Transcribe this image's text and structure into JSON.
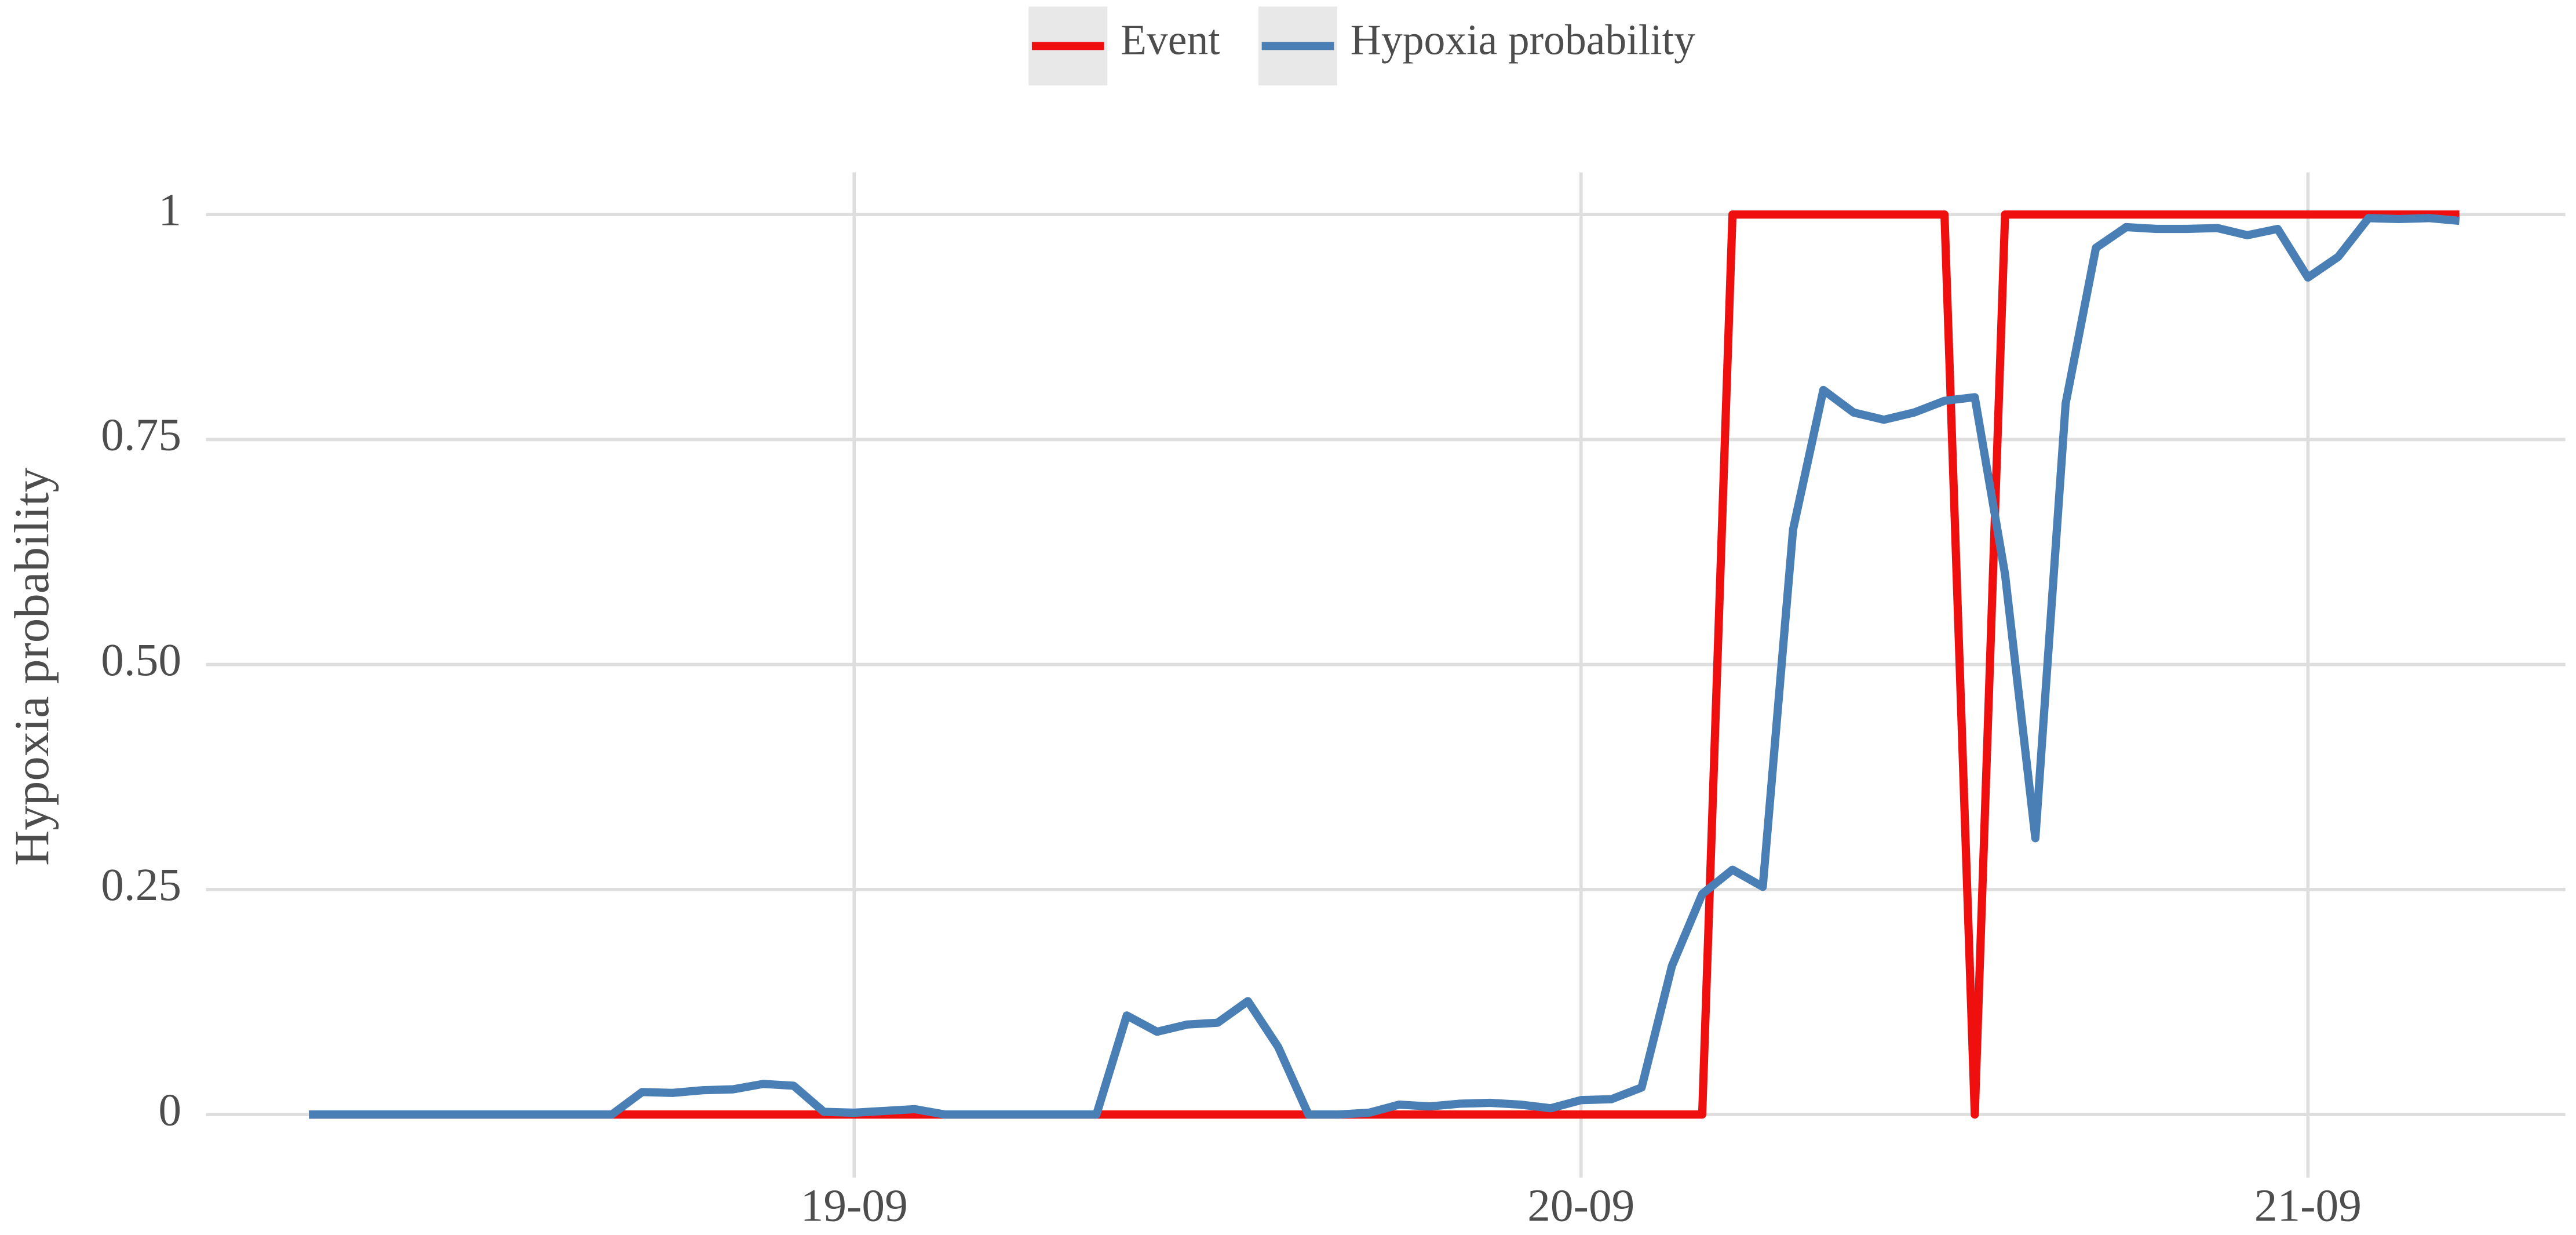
{
  "chart_data": {
    "type": "line",
    "y_label": "Hypoxia probability",
    "legend": "top",
    "grid": true,
    "x": [
      6,
      7,
      8,
      9,
      10,
      11,
      12,
      13,
      14,
      15,
      16,
      17,
      18,
      19,
      20,
      21,
      22,
      23,
      24,
      25,
      26,
      27,
      28,
      29,
      30,
      31,
      32,
      33,
      34,
      35,
      36,
      37,
      38,
      39,
      40,
      41,
      42,
      43,
      44,
      45,
      46,
      47,
      48,
      49,
      50,
      51,
      52,
      53,
      54,
      55,
      56,
      57,
      58,
      59,
      60,
      61,
      62,
      63,
      64,
      65,
      66,
      67,
      68,
      69,
      70,
      71,
      72,
      73,
      74,
      75,
      76,
      77
    ],
    "xlim": [
      2.6,
      80.5
    ],
    "xticks": [
      {
        "value": 24,
        "label": "19-09"
      },
      {
        "value": 48,
        "label": "20-09"
      },
      {
        "value": 72,
        "label": "21-09"
      }
    ],
    "ylim": [
      -0.07,
      1.065
    ],
    "yticks": [
      0,
      0.25,
      {
        "value": 0.5,
        "label": "0.50"
      },
      0.75,
      1
    ],
    "series": [
      {
        "name": "Event",
        "color": "#f00f0f",
        "values": [
          0,
          0,
          0,
          0,
          0,
          0,
          0,
          0,
          0,
          0,
          0,
          0,
          0,
          0,
          0,
          0,
          0,
          0,
          0,
          0,
          0,
          0,
          0,
          0,
          0,
          0,
          0,
          0,
          0,
          0,
          0,
          0,
          0,
          0,
          0,
          0,
          0,
          0,
          0,
          0,
          0,
          0,
          0,
          0,
          0,
          0,
          0,
          1,
          1,
          1,
          1,
          1,
          1,
          1,
          1,
          0,
          1,
          1,
          1,
          1,
          1,
          1,
          1,
          1,
          1,
          1,
          1,
          1,
          1,
          1,
          1,
          1
        ]
      },
      {
        "name": "Hypoxia probability",
        "color": "#4a7fb5",
        "values": [
          0,
          0,
          0,
          0,
          0,
          0,
          0,
          0,
          0,
          0,
          0,
          0.025,
          0.024,
          0.027,
          0.028,
          0.034,
          0.032,
          0.003,
          0.002,
          0.004,
          0.006,
          0,
          0,
          0,
          0,
          0,
          0,
          0.11,
          0.092,
          0.1,
          0.102,
          0.126,
          0.075,
          0,
          0,
          0.002,
          0.011,
          0.009,
          0.012,
          0.013,
          0.011,
          0.007,
          0.016,
          0.017,
          0.03,
          0.165,
          0.245,
          0.272,
          0.253,
          0.65,
          0.805,
          0.78,
          0.772,
          0.78,
          0.793,
          0.797,
          0.6,
          0.307,
          0.79,
          0.963,
          0.986,
          0.984,
          0.984,
          0.985,
          0.977,
          0.984,
          0.93,
          0.953,
          0.996,
          0.995,
          0.996,
          0.993
        ]
      }
    ]
  }
}
